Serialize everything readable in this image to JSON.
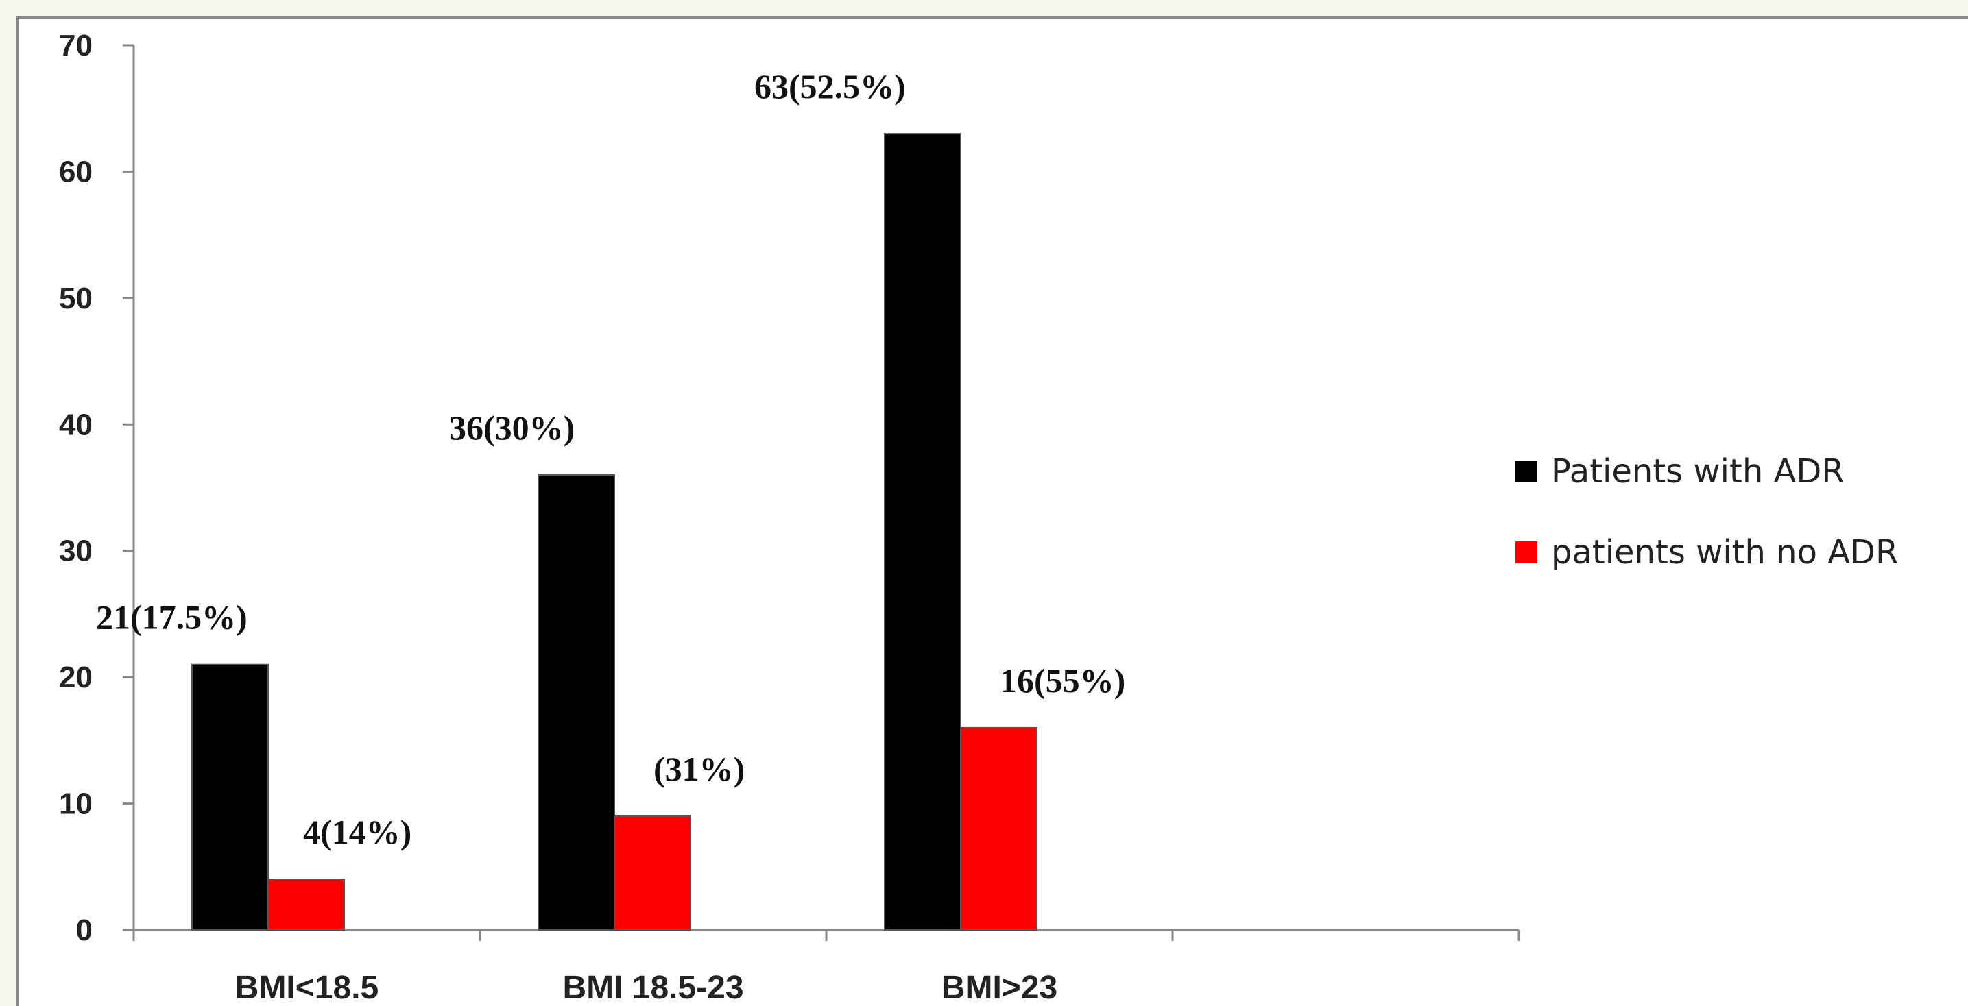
{
  "chart_data": {
    "type": "bar",
    "categories": [
      "BMI<18.5",
      "BMI 18.5-23",
      "BMI>23"
    ],
    "series": [
      {
        "name": "Patients with ADR",
        "color": "#000000",
        "values": [
          21,
          36,
          63
        ],
        "labels": [
          "21(17.5%)",
          "36(30%)",
          "63(52.5%)"
        ]
      },
      {
        "name": "patients with no ADR",
        "color": "#ff0000",
        "values": [
          4,
          9,
          16
        ],
        "labels": [
          "4(14%)",
          "(31%)",
          "16(55%)"
        ]
      }
    ],
    "yticks": [
      "0",
      "10",
      "20",
      "30",
      "40",
      "50",
      "60",
      "70"
    ],
    "ylim": [
      0,
      70
    ],
    "legend_position": "right",
    "grid": false
  }
}
